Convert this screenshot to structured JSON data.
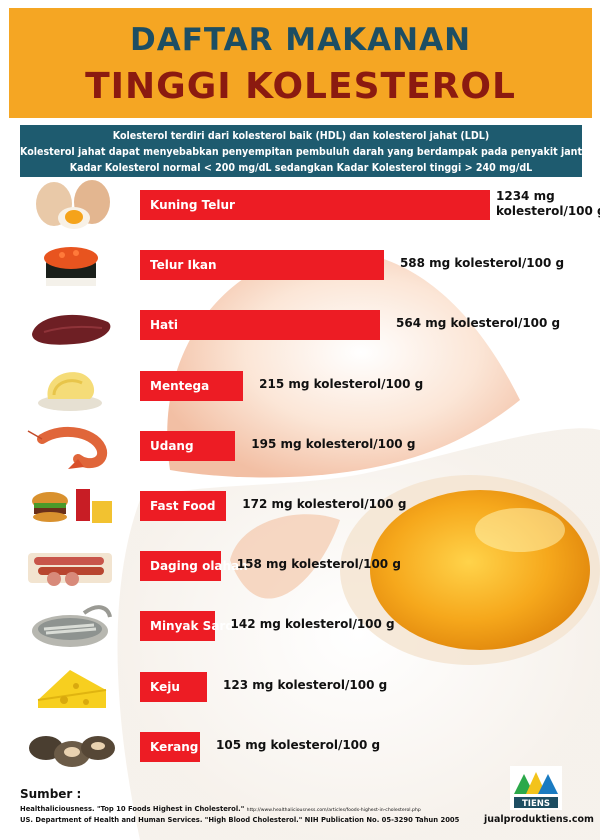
{
  "header": {
    "line1": "DAFTAR MAKANAN",
    "line2": "TINGGI KOLESTEROL"
  },
  "info": {
    "line1": "Kolesterol terdiri dari kolesterol baik (HDL) dan kolesterol jahat (LDL)",
    "line2": "Kolesterol jahat dapat menyebabkan penyempitan pembuluh darah yang berdampak pada penyakit jantung",
    "line3": "Kadar Kolesterol normal < 200 mg/dL  sedangkan Kadar Kolesterol tinggi > 240 mg/dL"
  },
  "chart_data": {
    "type": "bar",
    "orientation": "horizontal",
    "title": "DAFTAR MAKANAN TINGGI KOLESTEROL",
    "unit": "mg kolesterol/100 g",
    "categories": [
      "Kuning Telur",
      "Telur Ikan",
      "Hati",
      "Mentega",
      "Udang",
      "Fast Food",
      "Daging olahan",
      "Minyak Sarden",
      "Keju",
      "Kerang"
    ],
    "values": [
      1234,
      588,
      564,
      215,
      195,
      172,
      158,
      142,
      123,
      105
    ],
    "value_labels": [
      [
        "1234 mg",
        "kolesterol/100 g"
      ],
      [
        "588 mg kolesterol/100 g"
      ],
      [
        "564 mg kolesterol/100 g"
      ],
      [
        "215 mg kolesterol/100 g"
      ],
      [
        "195 mg kolesterol/100 g"
      ],
      [
        "172 mg kolesterol/100 g"
      ],
      [
        "158 mg kolesterol/100 g"
      ],
      [
        "142 mg kolesterol/100 g"
      ],
      [
        "123 mg kolesterol/100 g"
      ],
      [
        "105 mg kolesterol/100 g"
      ]
    ],
    "icons": [
      "egg-yolk-icon",
      "fish-roe-sushi-icon",
      "liver-icon",
      "butter-icon",
      "shrimp-icon",
      "fast-food-icon",
      "sausage-icon",
      "sardine-can-icon",
      "cheese-icon",
      "clam-icon"
    ],
    "bar_color": "#ed1c24"
  },
  "footer": {
    "source_label": "Sumber :",
    "ref1_main": "Healthaliciousness. \"Top 10 Foods Highest in Cholesterol.\"",
    "ref1_url": "http://www.healthaliciousness.com/articles/foods-highest-in-cholesterol.php",
    "ref2": "US. Department of Health and Human Services. \"High Blood Cholesterol.\" NIH Publication No. 05-3290 Tahun 2005",
    "logo_text": "TIENS",
    "site": "jualproduktiens.com"
  },
  "colors": {
    "header_bg": "#f5a623",
    "title_blue": "#1d4e63",
    "title_red": "#8b1a10",
    "info_bg": "#1e5b6f",
    "bar": "#ed1c24"
  }
}
